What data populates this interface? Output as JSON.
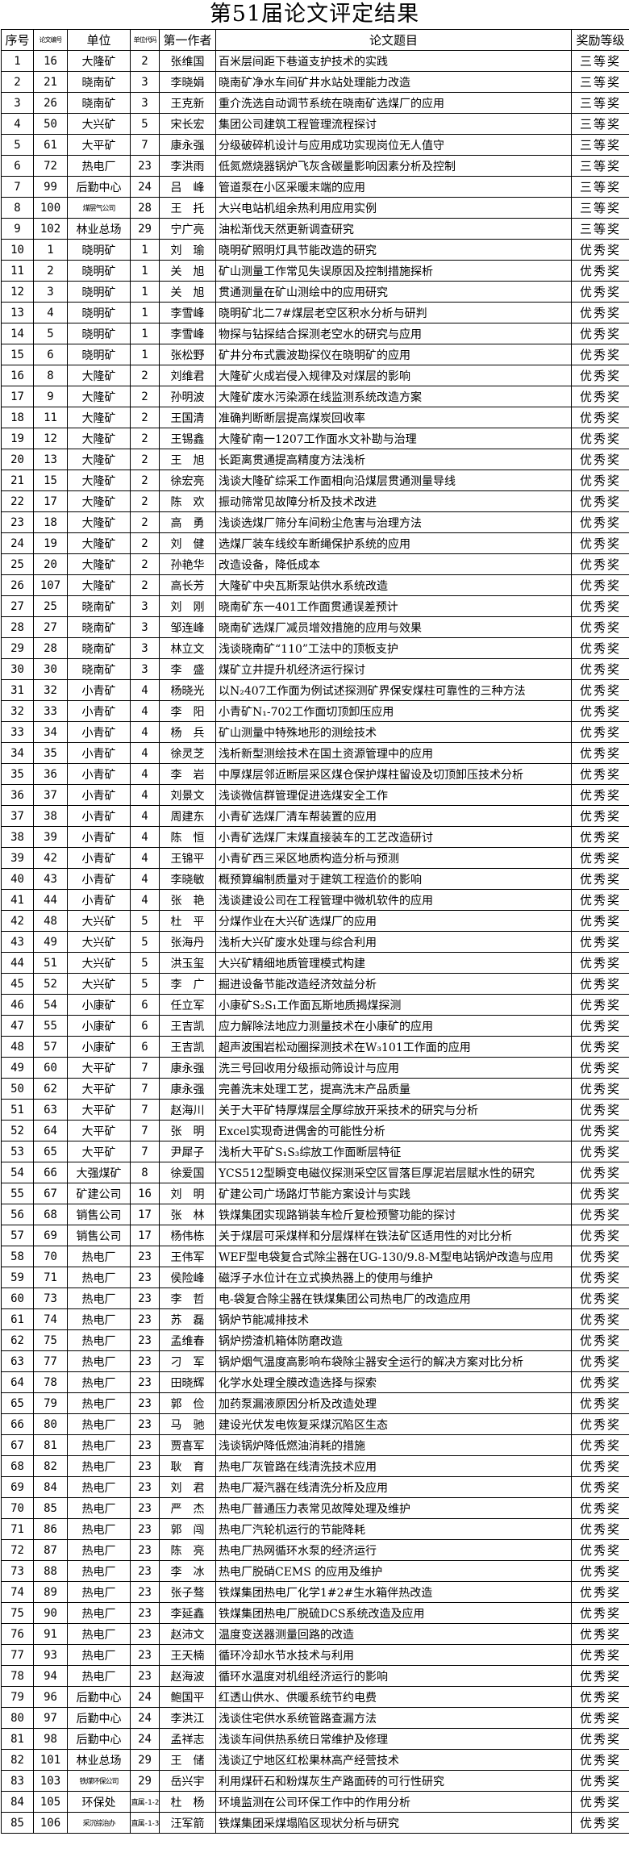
{
  "title": "第51届论文评定结果",
  "table": {
    "columns": [
      "序号",
      "论文编号",
      "单位",
      "单位代码",
      "第一作者",
      "论文题目",
      "奖励等级"
    ],
    "rows": [
      [
        "1",
        "16",
        "大隆矿",
        "2",
        "张维国",
        "百米层间距下巷道支护技术的实践",
        "三等奖"
      ],
      [
        "2",
        "21",
        "晓南矿",
        "3",
        "李晓娟",
        "晓南矿净水车间矿井水站处理能力改造",
        "三等奖"
      ],
      [
        "3",
        "26",
        "晓南矿",
        "3",
        "王克新",
        "重介洗选自动调节系统在晓南矿选煤厂的应用",
        "三等奖"
      ],
      [
        "4",
        "50",
        "大兴矿",
        "5",
        "宋长宏",
        "集团公司建筑工程管理流程探讨",
        "三等奖"
      ],
      [
        "5",
        "61",
        "大平矿",
        "7",
        "康永强",
        "分级破碎机设计与应用成功实现岗位无人值守",
        "三等奖"
      ],
      [
        "6",
        "72",
        "热电厂",
        "23",
        "李洪雨",
        "低氮燃烧器锅炉飞灰含碳量影响因素分析及控制",
        "三等奖"
      ],
      [
        "7",
        "99",
        "后勤中心",
        "24",
        "吕　峰",
        "管道泵在小区采暖末端的应用",
        "三等奖"
      ],
      [
        "8",
        "100",
        "煤层气公司",
        "28",
        "王　托",
        "大兴电站机组余热利用应用实例",
        "三等奖"
      ],
      [
        "9",
        "102",
        "林业总场",
        "29",
        "宁广亮",
        "油松渐伐天然更新调查研究",
        "三等奖"
      ],
      [
        "10",
        "1",
        "晓明矿",
        "1",
        "刘　瑜",
        "晓明矿照明灯具节能改造的研究",
        "优秀奖"
      ],
      [
        "11",
        "2",
        "晓明矿",
        "1",
        "关　旭",
        "矿山测量工作常见失误原因及控制措施探析",
        "优秀奖"
      ],
      [
        "12",
        "3",
        "晓明矿",
        "1",
        "关　旭",
        "贯通测量在矿山测绘中的应用研究",
        "优秀奖"
      ],
      [
        "13",
        "4",
        "晓明矿",
        "1",
        "李雪峰",
        "晓明矿北二7#煤层老空区积水分析与研判",
        "优秀奖"
      ],
      [
        "14",
        "5",
        "晓明矿",
        "1",
        "李雪峰",
        "物探与钻探结合探测老空水的研究与应用",
        "优秀奖"
      ],
      [
        "15",
        "6",
        "晓明矿",
        "1",
        "张松野",
        "矿井分布式震波勘探仪在晓明矿的应用",
        "优秀奖"
      ],
      [
        "16",
        "8",
        "大隆矿",
        "2",
        "刘维君",
        "大隆矿火成岩侵入规律及对煤层的影响",
        "优秀奖"
      ],
      [
        "17",
        "9",
        "大隆矿",
        "2",
        "孙明波",
        "大隆矿废水污染源在线监测系统改造方案",
        "优秀奖"
      ],
      [
        "18",
        "11",
        "大隆矿",
        "2",
        "王国清",
        "准确判断断层提高煤炭回收率",
        "优秀奖"
      ],
      [
        "19",
        "12",
        "大隆矿",
        "2",
        "王锡鑫",
        "大隆矿南一1207工作面水文补勘与治理",
        "优秀奖"
      ],
      [
        "20",
        "13",
        "大隆矿",
        "2",
        "王　旭",
        "长距离贯通提高精度方法浅析",
        "优秀奖"
      ],
      [
        "21",
        "15",
        "大隆矿",
        "2",
        "徐宏亮",
        "浅谈大隆矿综采工作面相向沿煤层贯通测量导线",
        "优秀奖"
      ],
      [
        "22",
        "17",
        "大隆矿",
        "2",
        "陈　欢",
        "振动筛常见故障分析及技术改进",
        "优秀奖"
      ],
      [
        "23",
        "18",
        "大隆矿",
        "2",
        "高　勇",
        "浅谈选煤厂筛分车间粉尘危害与治理方法",
        "优秀奖"
      ],
      [
        "24",
        "19",
        "大隆矿",
        "2",
        "刘　健",
        "选煤厂装车线绞车断绳保护系统的应用",
        "优秀奖"
      ],
      [
        "25",
        "20",
        "大隆矿",
        "2",
        "孙艳华",
        "改造设备，降低成本",
        "优秀奖"
      ],
      [
        "26",
        "107",
        "大隆矿",
        "2",
        "高长芳",
        "大隆矿中央瓦斯泵站供水系统改造",
        "优秀奖"
      ],
      [
        "27",
        "25",
        "晓南矿",
        "3",
        "刘　刚",
        "晓南矿东一401工作面贯通误差预计",
        "优秀奖"
      ],
      [
        "28",
        "27",
        "晓南矿",
        "3",
        "邹连峰",
        "晓南矿选煤厂减员增效措施的应用与效果",
        "优秀奖"
      ],
      [
        "29",
        "28",
        "晓南矿",
        "3",
        "林立文",
        "浅谈晓南矿“110”工法中的顶板支护",
        "优秀奖"
      ],
      [
        "30",
        "30",
        "晓南矿",
        "3",
        "李　盛",
        "煤矿立井提升机经济运行探讨",
        "优秀奖"
      ],
      [
        "31",
        "32",
        "小青矿",
        "4",
        "杨晓光",
        "以N₂407工作面为例试述探测矿界保安煤柱可靠性的三种方法",
        "优秀奖"
      ],
      [
        "32",
        "33",
        "小青矿",
        "4",
        "李　阳",
        "小青矿N₁-702工作面切顶卸压应用",
        "优秀奖"
      ],
      [
        "33",
        "34",
        "小青矿",
        "4",
        "杨　兵",
        "矿山测量中特殊地形的测绘技术",
        "优秀奖"
      ],
      [
        "34",
        "35",
        "小青矿",
        "4",
        "徐灵芝",
        "浅析新型测绘技术在国土资源管理中的应用",
        "优秀奖"
      ],
      [
        "35",
        "36",
        "小青矿",
        "4",
        "李　岩",
        "中厚煤层邻近断层采区煤仓保护煤柱留设及切顶卸压技术分析",
        "优秀奖"
      ],
      [
        "36",
        "37",
        "小青矿",
        "4",
        "刘景文",
        "浅谈微信群管理促进选煤安全工作",
        "优秀奖"
      ],
      [
        "37",
        "38",
        "小青矿",
        "4",
        "周建东",
        "小青矿选煤厂清车帮装置的应用",
        "优秀奖"
      ],
      [
        "38",
        "39",
        "小青矿",
        "4",
        "陈　恒",
        "小青矿选煤厂末煤直接装车的工艺改造研讨",
        "优秀奖"
      ],
      [
        "39",
        "42",
        "小青矿",
        "4",
        "王锦平",
        "小青矿西三采区地质构造分析与预测",
        "优秀奖"
      ],
      [
        "40",
        "43",
        "小青矿",
        "4",
        "李晓敏",
        "概预算编制质量对于建筑工程造价的影响",
        "优秀奖"
      ],
      [
        "41",
        "44",
        "小青矿",
        "4",
        "张　艳",
        "浅谈建设公司在工程管理中微机软件的应用",
        "优秀奖"
      ],
      [
        "42",
        "48",
        "大兴矿",
        "5",
        "杜　平",
        "分煤作业在大兴矿选煤厂的应用",
        "优秀奖"
      ],
      [
        "43",
        "49",
        "大兴矿",
        "5",
        "张海丹",
        "浅析大兴矿废水处理与综合利用",
        "优秀奖"
      ],
      [
        "44",
        "51",
        "大兴矿",
        "5",
        "洪玉玺",
        "大兴矿精细地质管理模式构建",
        "优秀奖"
      ],
      [
        "45",
        "52",
        "大兴矿",
        "5",
        "李　广",
        "掘进设备节能改造经济效益分析",
        "优秀奖"
      ],
      [
        "46",
        "54",
        "小康矿",
        "6",
        "任立军",
        "小康矿S₂S₁工作面瓦斯地质揭煤探测",
        "优秀奖"
      ],
      [
        "47",
        "55",
        "小康矿",
        "6",
        "王吉凯",
        "应力解除法地应力测量技术在小康矿的应用",
        "优秀奖"
      ],
      [
        "48",
        "57",
        "小康矿",
        "6",
        "王吉凯",
        "超声波围岩松动圈探测技术在W₃101工作面的应用",
        "优秀奖"
      ],
      [
        "49",
        "60",
        "大平矿",
        "7",
        "康永强",
        "洗三号回收用分级振动筛设计与应用",
        "优秀奖"
      ],
      [
        "50",
        "62",
        "大平矿",
        "7",
        "康永强",
        "完善洗末处理工艺，提高洗末产品质量",
        "优秀奖"
      ],
      [
        "51",
        "63",
        "大平矿",
        "7",
        "赵海川",
        "关于大平矿特厚煤层全厚综放开采技术的研究与分析",
        "优秀奖"
      ],
      [
        "52",
        "64",
        "大平矿",
        "7",
        "张　明",
        "Excel实现奇进偶舍的可能性分析",
        "优秀奖"
      ],
      [
        "53",
        "65",
        "大平矿",
        "7",
        "尹犀子",
        "浅析大平矿S₁S₃综放工作面断层特征",
        "优秀奖"
      ],
      [
        "54",
        "66",
        "大强煤矿",
        "8",
        "徐爱国",
        "YCS512型瞬变电磁仪探测采空区冒落巨厚泥岩层赋水性的研究",
        "优秀奖"
      ],
      [
        "55",
        "67",
        "矿建公司",
        "16",
        "刘　明",
        "矿建公司广场路灯节能方案设计与实践",
        "优秀奖"
      ],
      [
        "56",
        "68",
        "销售公司",
        "17",
        "张　林",
        "铁煤集团实现路销装车检斤复检预警功能的探讨",
        "优秀奖"
      ],
      [
        "57",
        "69",
        "销售公司",
        "17",
        "杨伟栋",
        "关于煤层可采煤样和分层煤样在铁法矿区适用性的对比分析",
        "优秀奖"
      ],
      [
        "58",
        "70",
        "热电厂",
        "23",
        "王伟军",
        "WEF型电袋复合式除尘器在UG-130/9.8-M型电站锅炉改造与应用",
        "优秀奖"
      ],
      [
        "59",
        "71",
        "热电厂",
        "23",
        "侯险峰",
        "磁浮子水位计在立式换热器上的使用与维护",
        "优秀奖"
      ],
      [
        "60",
        "73",
        "热电厂",
        "23",
        "李　哲",
        "电-袋复合除尘器在铁煤集团公司热电厂的改造应用",
        "优秀奖"
      ],
      [
        "61",
        "74",
        "热电厂",
        "23",
        "苏　磊",
        "锅炉节能减排技术",
        "优秀奖"
      ],
      [
        "62",
        "75",
        "热电厂",
        "23",
        "孟维春",
        "锅炉捞渣机箱体防磨改造",
        "优秀奖"
      ],
      [
        "63",
        "77",
        "热电厂",
        "23",
        "刁　军",
        "锅炉烟气温度高影响布袋除尘器安全运行的解决方案对比分析",
        "优秀奖"
      ],
      [
        "64",
        "78",
        "热电厂",
        "23",
        "田晓辉",
        "化学水处理全膜改造选择与探索",
        "优秀奖"
      ],
      [
        "65",
        "79",
        "热电厂",
        "23",
        "郭　俭",
        "加药泵漏液原因分析及改造处理",
        "优秀奖"
      ],
      [
        "66",
        "80",
        "热电厂",
        "23",
        "马　驰",
        "建设光伏发电恢复采煤沉陷区生态",
        "优秀奖"
      ],
      [
        "67",
        "81",
        "热电厂",
        "23",
        "贾喜军",
        "浅谈锅炉降低燃油消耗的措施",
        "优秀奖"
      ],
      [
        "68",
        "82",
        "热电厂",
        "23",
        "耿　育",
        "热电厂灰管路在线清洗技术应用",
        "优秀奖"
      ],
      [
        "69",
        "84",
        "热电厂",
        "23",
        "刘　君",
        "热电厂凝汽器在线清洗分析及应用",
        "优秀奖"
      ],
      [
        "70",
        "85",
        "热电厂",
        "23",
        "严　杰",
        "热电厂普通压力表常见故障处理及维护",
        "优秀奖"
      ],
      [
        "71",
        "86",
        "热电厂",
        "23",
        "郭　闯",
        "热电厂汽轮机运行的节能降耗",
        "优秀奖"
      ],
      [
        "72",
        "87",
        "热电厂",
        "23",
        "陈　亮",
        "热电厂热网循环水泵的经济运行",
        "优秀奖"
      ],
      [
        "73",
        "88",
        "热电厂",
        "23",
        "李　冰",
        "热电厂脱硝CEMS 的应用及维护",
        "优秀奖"
      ],
      [
        "74",
        "89",
        "热电厂",
        "23",
        "张子骜",
        "铁煤集团热电厂化学1#2#生水箱伴热改造",
        "优秀奖"
      ],
      [
        "75",
        "90",
        "热电厂",
        "23",
        "李延鑫",
        "铁煤集团热电厂脱硫DCS系统改造及应用",
        "优秀奖"
      ],
      [
        "76",
        "91",
        "热电厂",
        "23",
        "赵沛文",
        "温度变送器测量回路的改造",
        "优秀奖"
      ],
      [
        "77",
        "93",
        "热电厂",
        "23",
        "王天楠",
        "循环冷却水节水技术与利用",
        "优秀奖"
      ],
      [
        "78",
        "94",
        "热电厂",
        "23",
        "赵海波",
        "循环水温度对机组经济运行的影响",
        "优秀奖"
      ],
      [
        "79",
        "96",
        "后勤中心",
        "24",
        "鲍国平",
        "红透山供水、供暖系统节约电费",
        "优秀奖"
      ],
      [
        "80",
        "97",
        "后勤中心",
        "24",
        "李洪江",
        "浅谈住宅供水系统管路查漏方法",
        "优秀奖"
      ],
      [
        "81",
        "98",
        "后勤中心",
        "24",
        "孟祥志",
        "浅谈车间供热系统日常维护及修理",
        "优秀奖"
      ],
      [
        "82",
        "101",
        "林业总场",
        "29",
        "王　储",
        "浅谈辽宁地区红松果林高产经营技术",
        "优秀奖"
      ],
      [
        "83",
        "103",
        "铁煤环保公司",
        "29",
        "岳兴宇",
        "利用煤矸石和粉煤灰生产路面砖的可行性研究",
        "优秀奖"
      ],
      [
        "84",
        "105",
        "环保处",
        "直属-1-2",
        "杜　杨",
        "环境监测在公司环保工作中的作用分析",
        "优秀奖"
      ],
      [
        "85",
        "106",
        "采沉综治办",
        "直属-1-3",
        "汪军箭",
        "铁煤集团采煤塌陷区现状分析与研究",
        "优秀奖"
      ]
    ]
  }
}
